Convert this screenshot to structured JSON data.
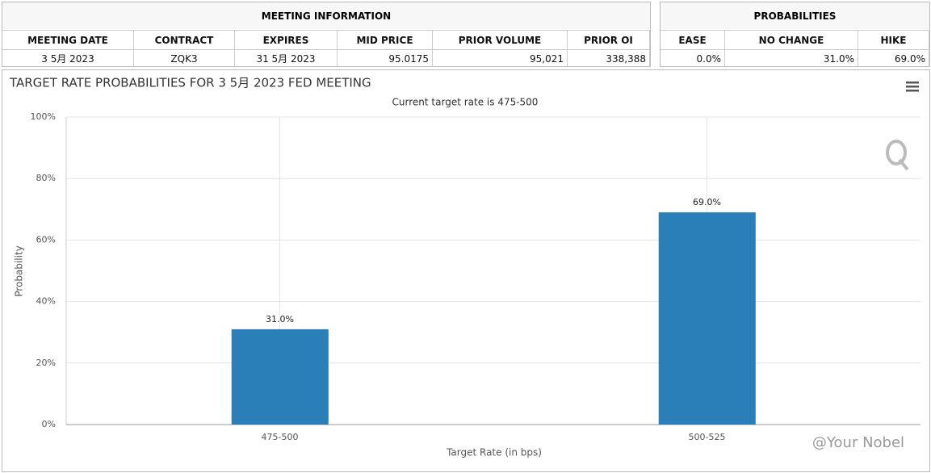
{
  "meeting_info": {
    "title": "MEETING INFORMATION",
    "headers": [
      "MEETING DATE",
      "CONTRACT",
      "EXPIRES",
      "MID PRICE",
      "PRIOR VOLUME",
      "PRIOR OI"
    ],
    "row": [
      "3 5月 2023",
      "ZQK3",
      "31 5月 2023",
      "95.0175",
      "95,021",
      "338,388"
    ]
  },
  "probabilities": {
    "title": "PROBABILITIES",
    "headers": [
      "EASE",
      "NO CHANGE",
      "HIKE"
    ],
    "row": [
      "0.0%",
      "31.0%",
      "69.0%"
    ]
  },
  "chart_data": {
    "type": "bar",
    "title": "TARGET RATE PROBABILITIES FOR 3 5月 2023 FED MEETING",
    "subtitle": "Current target rate is 475-500",
    "x_label": "Target Rate (in bps)",
    "y_label": "Probability",
    "categories": [
      "475-500",
      "500-525"
    ],
    "values": [
      31.0,
      69.0
    ],
    "value_labels": [
      "31.0%",
      "69.0%"
    ],
    "color": "#2a7fb8",
    "ylim": [
      0,
      100
    ],
    "yticks": [
      {
        "value": 0,
        "label": "0%"
      },
      {
        "value": 20,
        "label": "20%"
      },
      {
        "value": 40,
        "label": "40%"
      },
      {
        "value": 60,
        "label": "60%"
      },
      {
        "value": 80,
        "label": "80%"
      },
      {
        "value": 100,
        "label": "100%"
      }
    ],
    "grid": true
  },
  "watermark": "@Your Nobel"
}
